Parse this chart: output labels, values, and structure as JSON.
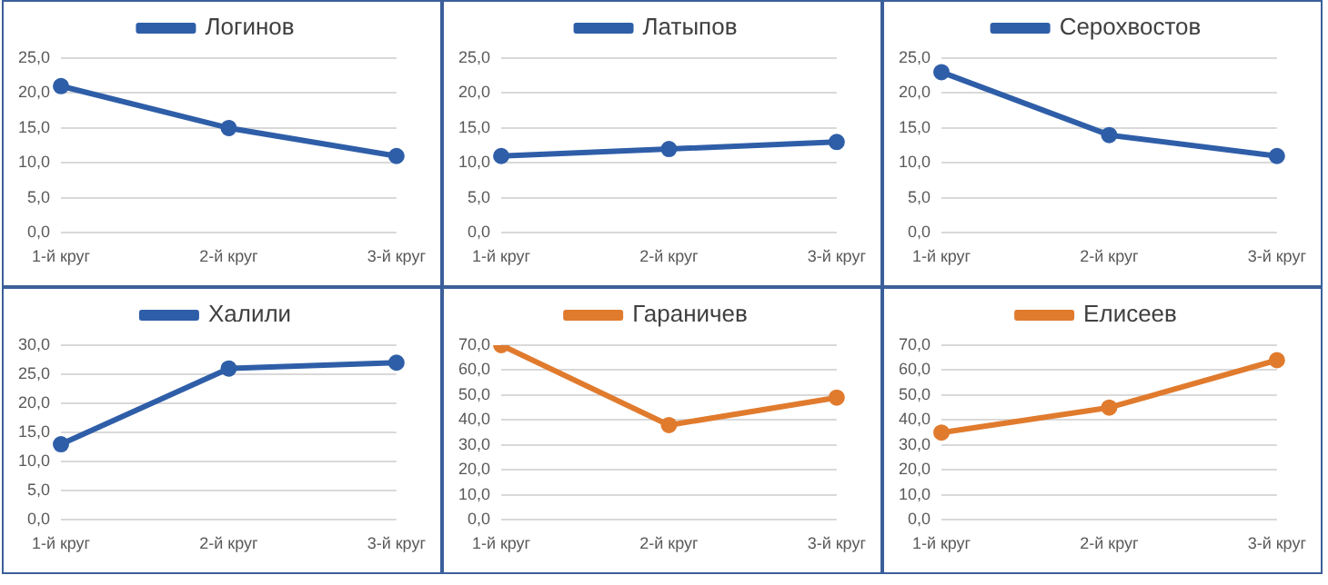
{
  "chart_data": [
    {
      "type": "line",
      "categories": [
        "1-й круг",
        "2-й круг",
        "3-й круг"
      ],
      "series": [
        {
          "name": "Логинов",
          "color": "#2f5ea8",
          "values": [
            21,
            15,
            11
          ]
        }
      ],
      "ylim": [
        0,
        25
      ],
      "yticks": [
        {
          "value": 0,
          "label": "0,0"
        },
        {
          "value": 5,
          "label": "5,0"
        },
        {
          "value": 10,
          "label": "10,0"
        },
        {
          "value": 15,
          "label": "15,0"
        },
        {
          "value": 20,
          "label": "20,0"
        },
        {
          "value": 25,
          "label": "25,0"
        }
      ],
      "grid": "y",
      "legend": "top",
      "marker": "circle"
    },
    {
      "type": "line",
      "categories": [
        "1-й круг",
        "2-й круг",
        "3-й круг"
      ],
      "series": [
        {
          "name": "Латыпов",
          "color": "#2f5ea8",
          "values": [
            11,
            12,
            13
          ]
        }
      ],
      "ylim": [
        0,
        25
      ],
      "yticks": [
        {
          "value": 0,
          "label": "0,0"
        },
        {
          "value": 5,
          "label": "5,0"
        },
        {
          "value": 10,
          "label": "10,0"
        },
        {
          "value": 15,
          "label": "15,0"
        },
        {
          "value": 20,
          "label": "20,0"
        },
        {
          "value": 25,
          "label": "25,0"
        }
      ],
      "grid": "y",
      "legend": "top",
      "marker": "circle"
    },
    {
      "type": "line",
      "categories": [
        "1-й круг",
        "2-й круг",
        "3-й круг"
      ],
      "series": [
        {
          "name": "Серохвостов",
          "color": "#2f5ea8",
          "values": [
            23,
            14,
            11
          ]
        }
      ],
      "ylim": [
        0,
        25
      ],
      "yticks": [
        {
          "value": 0,
          "label": "0,0"
        },
        {
          "value": 5,
          "label": "5,0"
        },
        {
          "value": 10,
          "label": "10,0"
        },
        {
          "value": 15,
          "label": "15,0"
        },
        {
          "value": 20,
          "label": "20,0"
        },
        {
          "value": 25,
          "label": "25,0"
        }
      ],
      "grid": "y",
      "legend": "top",
      "marker": "circle"
    },
    {
      "type": "line",
      "categories": [
        "1-й круг",
        "2-й круг",
        "3-й круг"
      ],
      "series": [
        {
          "name": "Халили",
          "color": "#2f5ea8",
          "values": [
            13,
            26,
            27
          ]
        }
      ],
      "ylim": [
        0,
        30
      ],
      "yticks": [
        {
          "value": 0,
          "label": "0,0"
        },
        {
          "value": 5,
          "label": "5,0"
        },
        {
          "value": 10,
          "label": "10,0"
        },
        {
          "value": 15,
          "label": "15,0"
        },
        {
          "value": 20,
          "label": "20,0"
        },
        {
          "value": 25,
          "label": "25,0"
        },
        {
          "value": 30,
          "label": "30,0"
        }
      ],
      "grid": "y",
      "legend": "top",
      "marker": "circle"
    },
    {
      "type": "line",
      "categories": [
        "1-й круг",
        "2-й круг",
        "3-й круг"
      ],
      "series": [
        {
          "name": "Гараничев",
          "color": "#e07b2e",
          "values": [
            70,
            38,
            49
          ]
        }
      ],
      "ylim": [
        0,
        70
      ],
      "yticks": [
        {
          "value": 0,
          "label": "0,0"
        },
        {
          "value": 10,
          "label": "10,0"
        },
        {
          "value": 20,
          "label": "20,0"
        },
        {
          "value": 30,
          "label": "30,0"
        },
        {
          "value": 40,
          "label": "40,0"
        },
        {
          "value": 50,
          "label": "50,0"
        },
        {
          "value": 60,
          "label": "60,0"
        },
        {
          "value": 70,
          "label": "70,0"
        }
      ],
      "grid": "y",
      "legend": "top",
      "marker": "circle"
    },
    {
      "type": "line",
      "categories": [
        "1-й круг",
        "2-й круг",
        "3-й круг"
      ],
      "series": [
        {
          "name": "Елисеев",
          "color": "#e07b2e",
          "values": [
            35,
            45,
            64
          ]
        }
      ],
      "ylim": [
        0,
        70
      ],
      "yticks": [
        {
          "value": 0,
          "label": "0,0"
        },
        {
          "value": 10,
          "label": "10,0"
        },
        {
          "value": 20,
          "label": "20,0"
        },
        {
          "value": 30,
          "label": "30,0"
        },
        {
          "value": 40,
          "label": "40,0"
        },
        {
          "value": 50,
          "label": "50,0"
        },
        {
          "value": 60,
          "label": "60,0"
        },
        {
          "value": 70,
          "label": "70,0"
        }
      ],
      "grid": "y",
      "legend": "top",
      "marker": "circle"
    }
  ]
}
